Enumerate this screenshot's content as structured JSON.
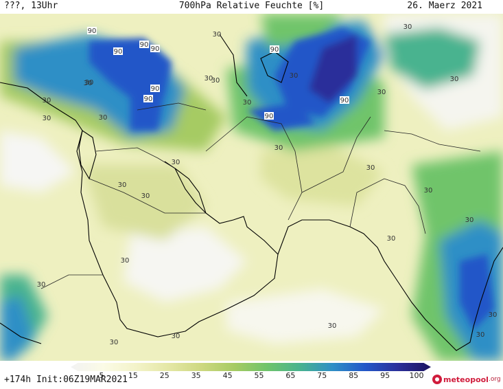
{
  "header": {
    "left": "???, 13Uhr",
    "title": "700hPa Relative Feuchte [%]",
    "date": "26. Maerz 2021"
  },
  "footer": {
    "run_info": "+174h Init:06Z19MAR2021",
    "logo": "meteopool",
    "logo_suffix": ".org"
  },
  "colorbar": {
    "ticks": [
      "5",
      "15",
      "25",
      "35",
      "45",
      "55",
      "65",
      "75",
      "85",
      "95",
      "100"
    ],
    "colors": [
      "#f2f2f2",
      "#fbfbe6",
      "#f3f3c9",
      "#e4e7a5",
      "#cdd880",
      "#a6cb63",
      "#6fc46b",
      "#49b38f",
      "#2f8fc6",
      "#2357c8",
      "#2b2f9a",
      "#1c1460"
    ]
  },
  "contour_labels": [
    "90",
    "90",
    "90",
    "90",
    "90",
    "90",
    "90",
    "90",
    "90",
    "30",
    "30",
    "30",
    "30",
    "30",
    "30",
    "30",
    "30",
    "30",
    "30",
    "30",
    "30",
    "30",
    "30",
    "30",
    "30",
    "30",
    "30",
    "30",
    "30",
    "30",
    "30",
    "30",
    "30",
    "30",
    "30",
    "30",
    "30"
  ]
}
